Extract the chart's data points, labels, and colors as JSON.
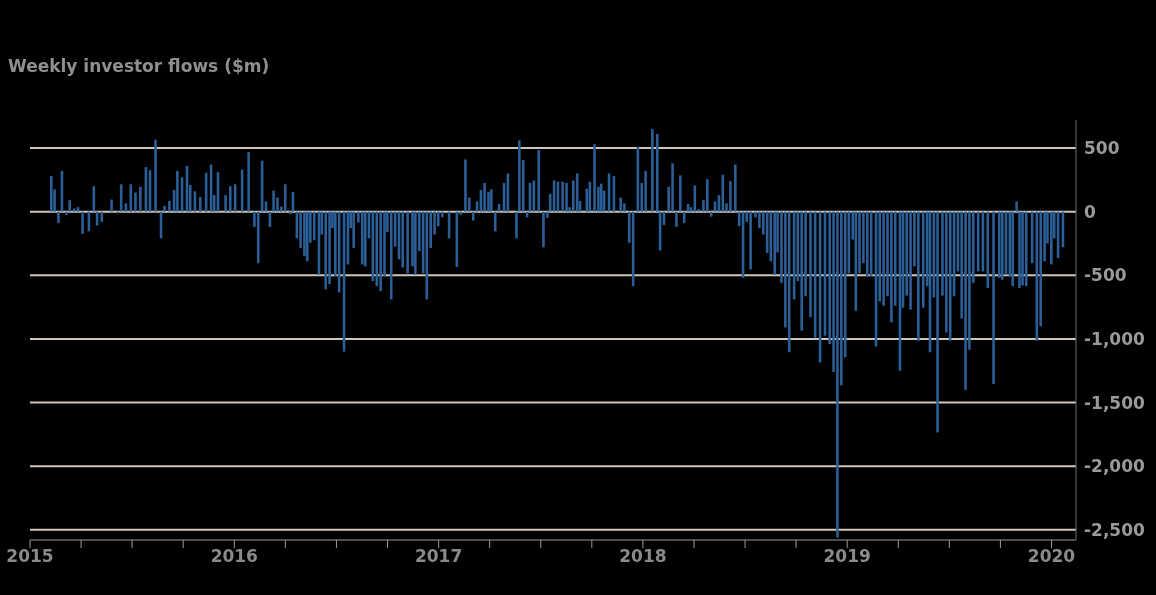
{
  "chart_data": {
    "type": "bar",
    "title": "Weekly investor flows ($m)",
    "color": "#2b5f98",
    "grid": "y",
    "x": [
      2015.105,
      2015.121,
      2015.14,
      2015.157,
      2015.179,
      2015.195,
      2015.218,
      2015.236,
      2015.258,
      2015.289,
      2015.313,
      2015.329,
      2015.352,
      2015.4,
      2015.431,
      2015.447,
      2015.47,
      2015.494,
      2015.517,
      2015.541,
      2015.568,
      2015.588,
      2015.615,
      2015.642,
      2015.659,
      2015.683,
      2015.706,
      2015.722,
      2015.745,
      2015.769,
      2015.785,
      2015.808,
      2015.834,
      2015.863,
      2015.887,
      2015.902,
      2015.921,
      2015.958,
      2015.981,
      2016.005,
      2016.039,
      2016.071,
      2016.099,
      2016.118,
      2016.137,
      2016.156,
      2016.175,
      2016.193,
      2016.212,
      2016.231,
      2016.25,
      2016.274,
      2016.288,
      2016.307,
      2016.325,
      2016.344,
      2016.358,
      2016.373,
      2016.392,
      2016.415,
      2016.429,
      2016.448,
      2016.467,
      2016.481,
      2016.495,
      2016.514,
      2016.538,
      2016.557,
      2016.571,
      2016.585,
      2016.608,
      2016.627,
      2016.642,
      2016.66,
      2016.679,
      2016.698,
      2016.717,
      2016.736,
      2016.75,
      2016.769,
      2016.788,
      2016.807,
      2016.825,
      2016.849,
      2016.873,
      2016.887,
      2016.906,
      2016.925,
      2016.943,
      2016.962,
      2016.981,
      2016.999,
      2017.019,
      2017.052,
      2017.09,
      2017.109,
      2017.132,
      2017.151,
      2017.17,
      2017.189,
      2017.208,
      2017.226,
      2017.245,
      2017.259,
      2017.278,
      2017.297,
      2017.321,
      2017.34,
      2017.382,
      2017.396,
      2017.415,
      2017.434,
      2017.448,
      2017.467,
      2017.491,
      2017.514,
      2017.533,
      2017.547,
      2017.566,
      2017.585,
      2017.608,
      2017.627,
      2017.642,
      2017.66,
      2017.679,
      2017.693,
      2017.726,
      2017.741,
      2017.764,
      2017.783,
      2017.797,
      2017.811,
      2017.835,
      2017.859,
      2017.892,
      2017.91,
      2017.934,
      2017.953,
      2017.976,
      2017.995,
      2018.014,
      2018.047,
      2018.071,
      2018.085,
      2018.104,
      2018.127,
      2018.146,
      2018.165,
      2018.184,
      2018.203,
      2018.222,
      2018.236,
      2018.255,
      2018.274,
      2018.297,
      2018.316,
      2018.335,
      2018.354,
      2018.373,
      2018.392,
      2018.41,
      2018.429,
      2018.453,
      2018.472,
      2018.491,
      2018.509,
      2018.528,
      2018.552,
      2018.571,
      2018.59,
      2018.609,
      2018.627,
      2018.646,
      2018.66,
      2018.679,
      2018.698,
      2018.717,
      2018.741,
      2018.759,
      2018.778,
      2018.797,
      2018.821,
      2018.844,
      2018.868,
      2018.892,
      2018.915,
      2018.934,
      2018.953,
      2018.972,
      2018.991,
      2019.009,
      2019.028,
      2019.043,
      2019.061,
      2019.08,
      2019.099,
      2019.118,
      2019.142,
      2019.16,
      2019.179,
      2019.198,
      2019.217,
      2019.236,
      2019.259,
      2019.274,
      2019.292,
      2019.311,
      2019.33,
      2019.349,
      2019.373,
      2019.392,
      2019.406,
      2019.425,
      2019.443,
      2019.467,
      2019.486,
      2019.505,
      2019.524,
      2019.543,
      2019.561,
      2019.58,
      2019.599,
      2019.618,
      2019.642,
      2019.665,
      2019.689,
      2019.717,
      2019.745,
      2019.76,
      2019.778,
      2019.797,
      2019.811,
      2019.83,
      2019.844,
      2019.859,
      2019.877,
      2019.906,
      2019.929,
      2019.948,
      2019.967,
      2019.981,
      2020.0,
      2020.014,
      2020.033,
      2020.057
    ],
    "values": [
      280,
      175,
      -90,
      320,
      -25,
      90,
      25,
      35,
      -175,
      -155,
      200,
      -110,
      -80,
      95,
      -15,
      215,
      65,
      215,
      150,
      195,
      350,
      325,
      565,
      -210,
      45,
      85,
      170,
      320,
      270,
      360,
      210,
      160,
      115,
      305,
      370,
      130,
      310,
      130,
      200,
      215,
      330,
      470,
      -120,
      -405,
      400,
      80,
      -120,
      165,
      110,
      40,
      215,
      -20,
      155,
      -210,
      -285,
      -350,
      -390,
      -245,
      -225,
      -495,
      -180,
      -610,
      -570,
      -130,
      -505,
      -635,
      -1100,
      -415,
      -130,
      -285,
      -85,
      -415,
      -430,
      -210,
      -545,
      -585,
      -625,
      -505,
      -160,
      -690,
      -275,
      -375,
      -440,
      -485,
      -430,
      -495,
      -310,
      -485,
      -690,
      -285,
      -180,
      -115,
      -45,
      -210,
      -435,
      -25,
      410,
      110,
      -70,
      80,
      170,
      225,
      155,
      175,
      -155,
      60,
      225,
      300,
      -210,
      560,
      405,
      -45,
      225,
      245,
      485,
      -280,
      -50,
      140,
      245,
      235,
      235,
      225,
      35,
      245,
      300,
      85,
      180,
      235,
      530,
      195,
      220,
      165,
      300,
      280,
      110,
      65,
      -245,
      -585,
      510,
      225,
      320,
      650,
      610,
      -305,
      -105,
      195,
      380,
      -120,
      285,
      -90,
      60,
      35,
      205,
      20,
      90,
      255,
      -40,
      80,
      130,
      290,
      65,
      240,
      370,
      -115,
      -520,
      -80,
      -455,
      -45,
      -130,
      -180,
      -325,
      -390,
      -495,
      -320,
      -560,
      -910,
      -1105,
      -690,
      -545,
      -935,
      -665,
      -830,
      -990,
      -1185,
      -975,
      -1040,
      -1260,
      -2560,
      -1365,
      -1145,
      -485,
      -220,
      -780,
      -485,
      -405,
      -510,
      -505,
      -1060,
      -705,
      -740,
      -665,
      -870,
      -740,
      -1250,
      -755,
      -660,
      -770,
      -430,
      -1015,
      -755,
      -585,
      -1105,
      -675,
      -1735,
      -660,
      -950,
      -1015,
      -665,
      -470,
      -840,
      -1400,
      -1085,
      -560,
      -470,
      -470,
      -600,
      -1355,
      -520,
      -535,
      -495,
      -510,
      -585,
      80,
      -600,
      -580,
      -585,
      -405,
      -1015,
      -900,
      -390,
      -250,
      -415,
      -210,
      -365,
      -280
    ],
    "xlim": [
      2015,
      2020.12
    ],
    "xticks": [
      2015,
      {
        "value": 2015.25,
        "label": null
      },
      {
        "value": 2015.5,
        "label": null
      },
      {
        "value": 2015.75,
        "label": null
      },
      2016,
      {
        "value": 2016.25,
        "label": null
      },
      {
        "value": 2016.5,
        "label": null
      },
      {
        "value": 2016.75,
        "label": null
      },
      2017,
      {
        "value": 2017.25,
        "label": null
      },
      {
        "value": 2017.5,
        "label": null
      },
      {
        "value": 2017.75,
        "label": null
      },
      2018,
      {
        "value": 2018.25,
        "label": null
      },
      {
        "value": 2018.5,
        "label": null
      },
      {
        "value": 2018.75,
        "label": null
      },
      2019,
      {
        "value": 2019.25,
        "label": null
      },
      {
        "value": 2019.5,
        "label": null
      },
      {
        "value": 2019.75,
        "label": null
      },
      2020
    ],
    "ylim": [
      -2580,
      720
    ],
    "yticks": [
      500,
      0,
      -500,
      {
        "value": -1000,
        "label": "-1,000"
      },
      {
        "value": -1500,
        "label": "-1,500"
      },
      {
        "value": -2000,
        "label": "-2,000"
      },
      {
        "value": -2500,
        "label": "-2,500"
      }
    ]
  }
}
